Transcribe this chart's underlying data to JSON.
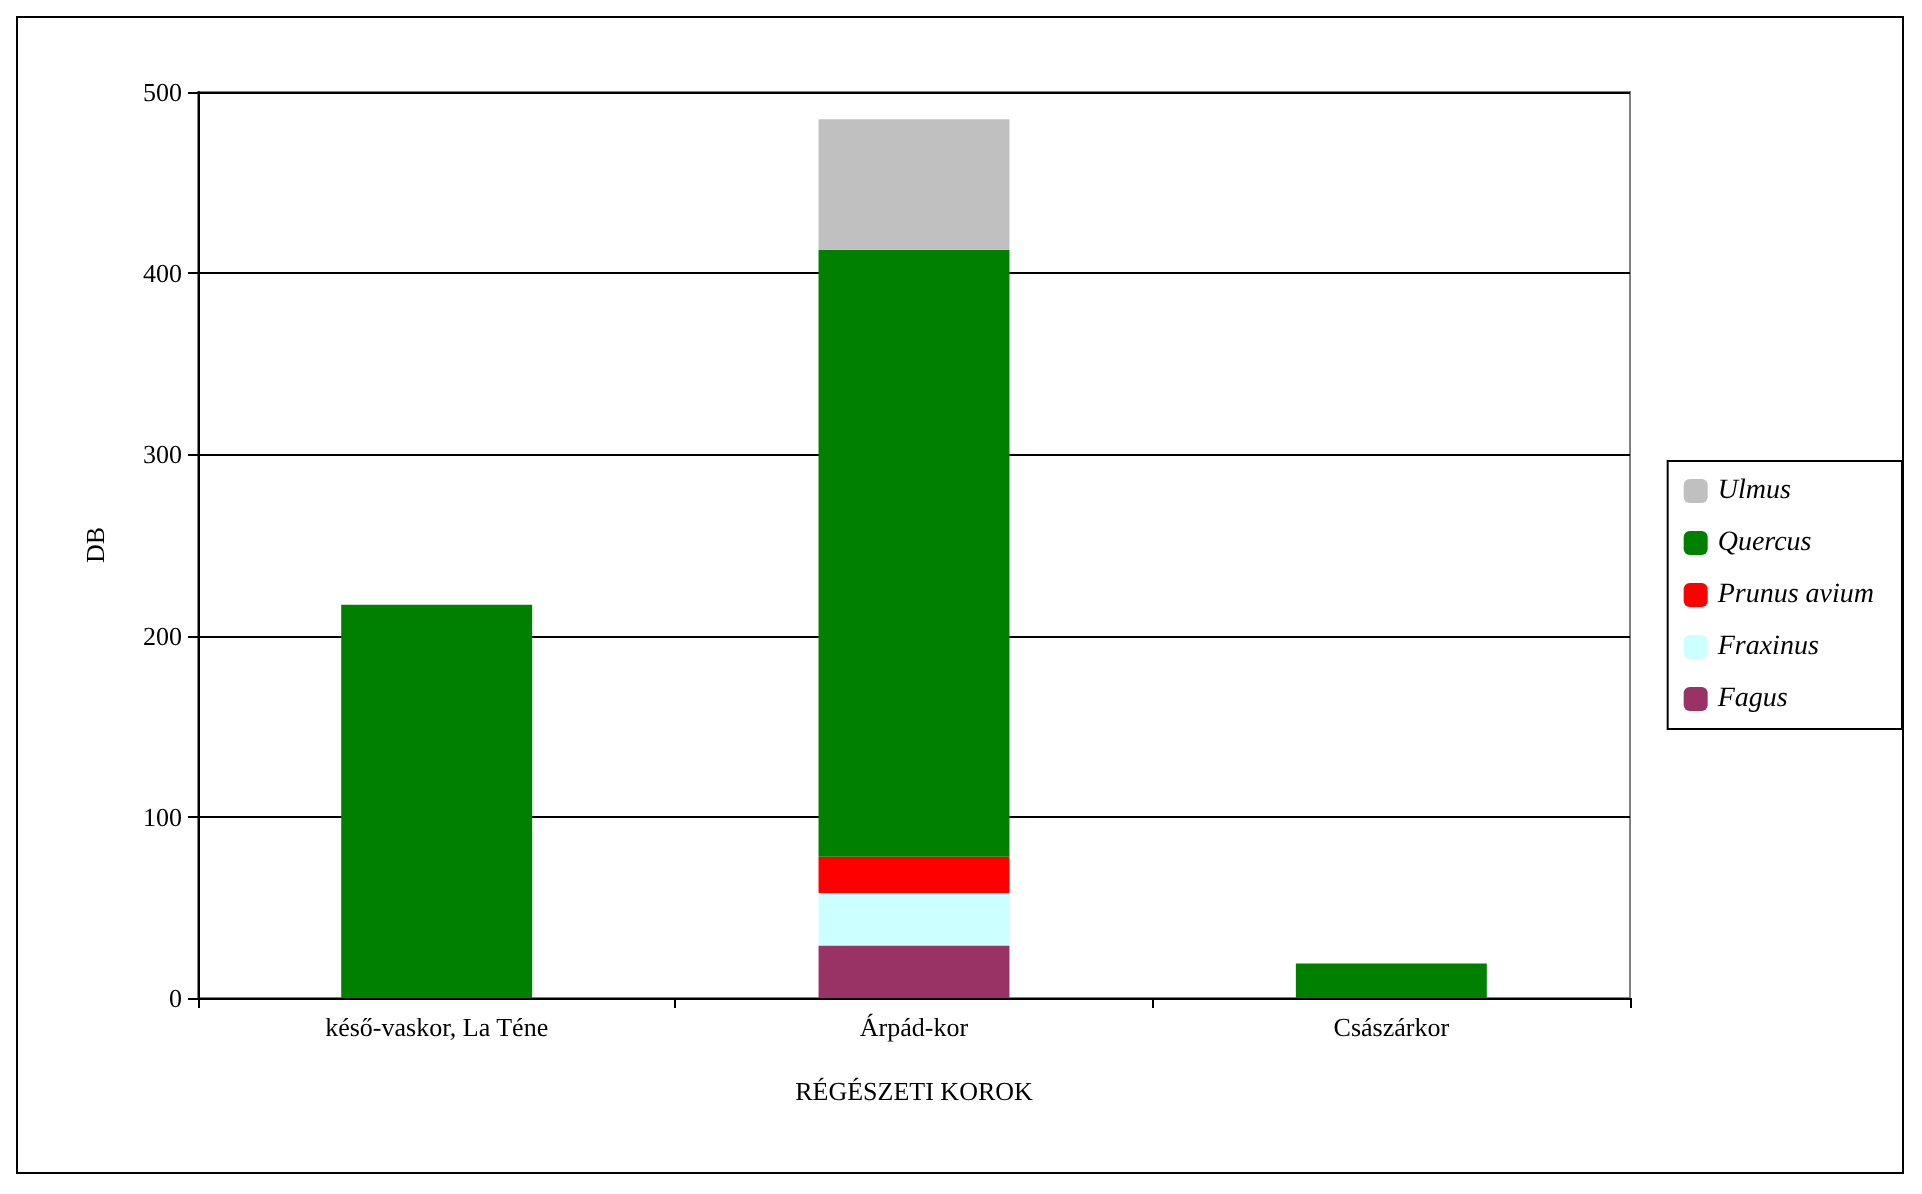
{
  "chart_data": {
    "type": "bar",
    "xlabel": "RÉGÉSZETI KOROK",
    "ylabel": "DB",
    "categories": [
      "késő-vaskor, La Téne",
      "Árpád-kor",
      "Császárkor"
    ],
    "stacked": true,
    "series": [
      {
        "name": "Fagus",
        "color": "#993366",
        "values": [
          null,
          29,
          null
        ]
      },
      {
        "name": "Fraxinus",
        "color": "#ccffff",
        "values": [
          null,
          29,
          null
        ]
      },
      {
        "name": "Prunus avium",
        "color": "#ff0000",
        "values": [
          null,
          20,
          null
        ]
      },
      {
        "name": "Quercus",
        "color": "#008000",
        "values": [
          217,
          335,
          19
        ]
      },
      {
        "name": "Ulmus",
        "color": "#c0c0c0",
        "values": [
          null,
          72,
          null
        ]
      }
    ],
    "ylim": [
      0,
      500
    ],
    "yticks": [
      0,
      100,
      200,
      300,
      400,
      500
    ],
    "grid": "y",
    "legend": "right"
  }
}
